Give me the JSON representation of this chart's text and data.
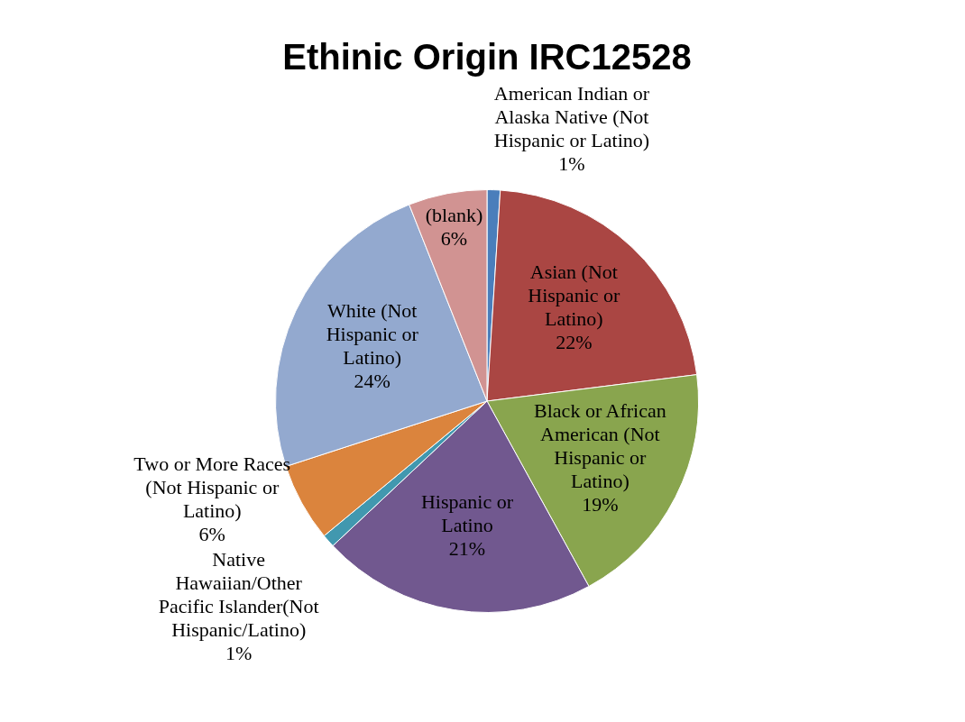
{
  "chart_data": {
    "type": "pie",
    "title": "Ethinic Origin IRC12528",
    "categories": [
      "American Indian or Alaska Native (Not Hispanic or Latino)",
      "Asian (Not Hispanic or Latino)",
      "Black or African American (Not Hispanic or Latino)",
      "Hispanic or Latino",
      "Native Hawaiian/Other Pacific Islander(Not Hispanic/Latino)",
      "Two or More Races (Not Hispanic or Latino)",
      "White (Not Hispanic or Latino)",
      "(blank)"
    ],
    "values": [
      1,
      22,
      19,
      21,
      1,
      6,
      24,
      6
    ],
    "value_labels": [
      "1%",
      "22%",
      "19%",
      "21%",
      "1%",
      "6%",
      "24%",
      "6%"
    ],
    "colors": [
      "#4a7ebb",
      "#aa4643",
      "#89a54e",
      "#71588f",
      "#4198af",
      "#db843d",
      "#93a9cf",
      "#d19392"
    ],
    "legend": false
  }
}
